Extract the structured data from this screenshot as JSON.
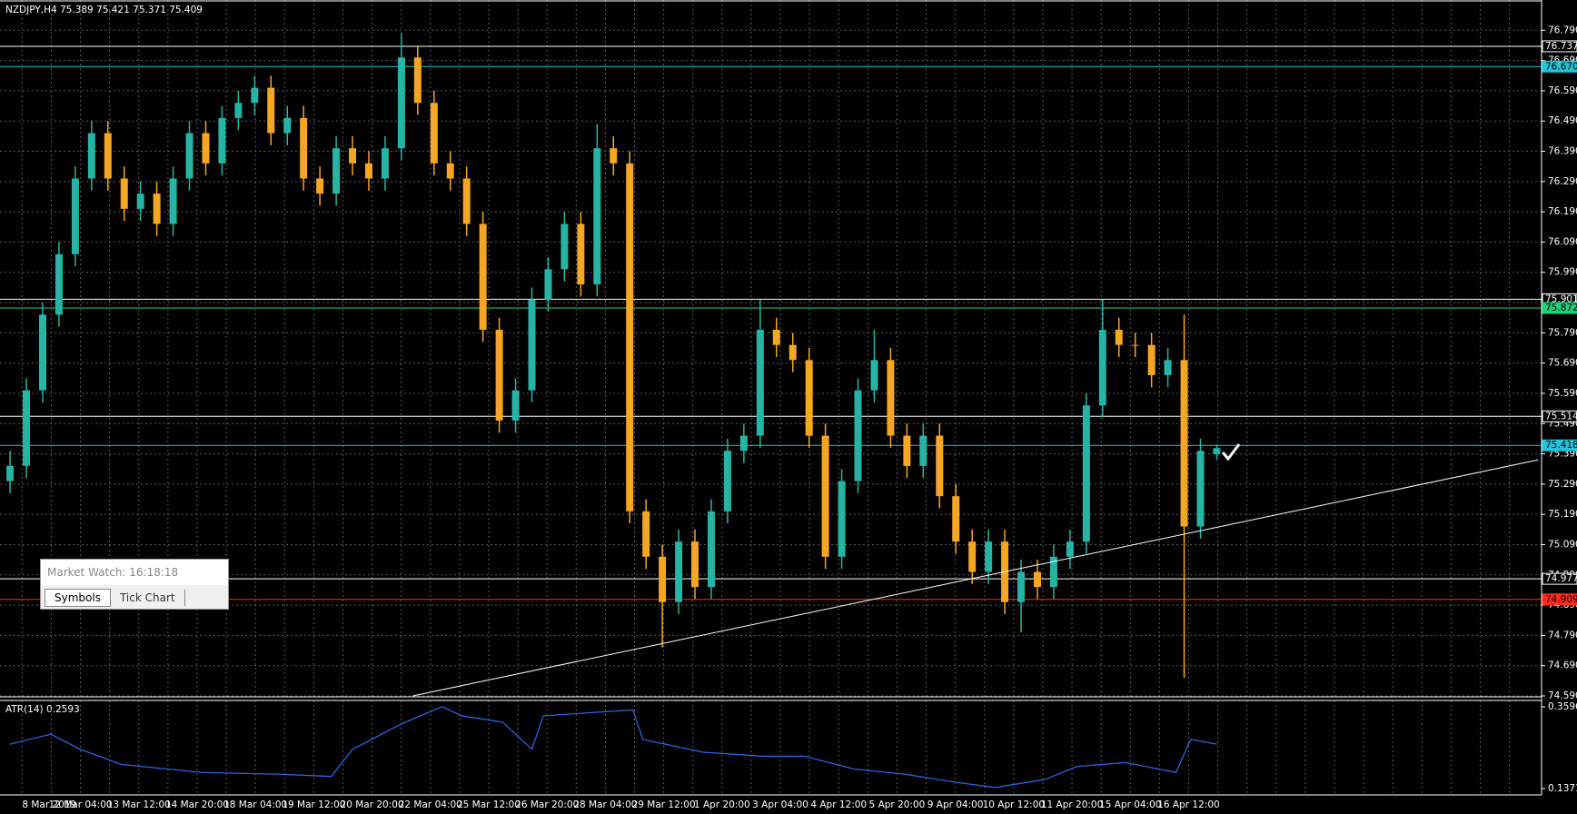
{
  "chart_data": {
    "type": "candlestick",
    "header": "NZDJPY,H4  75.389 75.421 75.371 75.409",
    "bull_color": "#26b5a5",
    "bear_color": "#f5a623",
    "ylim": [
      74.587,
      76.89
    ],
    "yticks": [
      {
        "value": 76.79,
        "label": "76.790"
      },
      {
        "value": 76.69,
        "label": "76.690"
      },
      {
        "value": 76.59,
        "label": "76.590"
      },
      {
        "value": 76.49,
        "label": "76.490"
      },
      {
        "value": 76.39,
        "label": "76.390"
      },
      {
        "value": 76.29,
        "label": "76.290"
      },
      {
        "value": 76.19,
        "label": "76.190"
      },
      {
        "value": 76.09,
        "label": "76.090"
      },
      {
        "value": 75.99,
        "label": "75.990"
      },
      {
        "value": 75.89,
        "label": "75.890"
      },
      {
        "value": 75.79,
        "label": "75.790"
      },
      {
        "value": 75.69,
        "label": "75.690"
      },
      {
        "value": 75.59,
        "label": "75.590"
      },
      {
        "value": 75.49,
        "label": "75.490"
      },
      {
        "value": 75.39,
        "label": "75.390"
      },
      {
        "value": 75.29,
        "label": "75.290"
      },
      {
        "value": 75.19,
        "label": "75.190"
      },
      {
        "value": 75.09,
        "label": "75.090"
      },
      {
        "value": 74.99,
        "label": "74.990"
      },
      {
        "value": 74.89,
        "label": "74.890"
      },
      {
        "value": 74.79,
        "label": "74.790"
      },
      {
        "value": 74.69,
        "label": "74.690"
      },
      {
        "value": 74.59,
        "label": "74.590"
      }
    ],
    "grid": true,
    "categories": [
      "8 Mar 2019",
      "12 Mar 04:00",
      "13 Mar 12:00",
      "14 Mar 20:00",
      "18 Mar 04:00",
      "19 Mar 12:00",
      "20 Mar 20:00",
      "22 Mar 04:00",
      "25 Mar 12:00",
      "26 Mar 20:00",
      "28 Mar 04:00",
      "29 Mar 12:00",
      "1 Apr 20:00",
      "3 Apr 04:00",
      "4 Apr 12:00",
      "5 Apr 20:00",
      "9 Apr 04:00",
      "10 Apr 12:00",
      "11 Apr 20:00",
      "15 Apr 04:00",
      "16 Apr 12:00"
    ],
    "candles": [
      [
        75.3,
        75.4,
        75.26,
        75.35
      ],
      [
        75.35,
        75.64,
        75.31,
        75.6
      ],
      [
        75.6,
        75.89,
        75.56,
        75.85
      ],
      [
        75.85,
        76.09,
        75.81,
        76.05
      ],
      [
        76.05,
        76.34,
        76.01,
        76.3
      ],
      [
        76.3,
        76.49,
        76.26,
        76.45
      ],
      [
        76.45,
        76.49,
        76.26,
        76.3
      ],
      [
        76.3,
        76.34,
        76.16,
        76.2
      ],
      [
        76.2,
        76.29,
        76.16,
        76.25
      ],
      [
        76.25,
        76.29,
        76.11,
        76.15
      ],
      [
        76.15,
        76.34,
        76.11,
        76.3
      ],
      [
        76.3,
        76.49,
        76.26,
        76.45
      ],
      [
        76.45,
        76.49,
        76.31,
        76.35
      ],
      [
        76.35,
        76.54,
        76.31,
        76.5
      ],
      [
        76.5,
        76.59,
        76.46,
        76.55
      ],
      [
        76.55,
        76.64,
        76.51,
        76.6
      ],
      [
        76.6,
        76.64,
        76.41,
        76.45
      ],
      [
        76.45,
        76.54,
        76.41,
        76.5
      ],
      [
        76.5,
        76.54,
        76.26,
        76.3
      ],
      [
        76.3,
        76.34,
        76.21,
        76.25
      ],
      [
        76.25,
        76.44,
        76.21,
        76.4
      ],
      [
        76.4,
        76.44,
        76.31,
        76.35
      ],
      [
        76.35,
        76.39,
        76.26,
        76.3
      ],
      [
        76.3,
        76.44,
        76.26,
        76.4
      ],
      [
        76.4,
        76.78,
        76.36,
        76.7
      ],
      [
        76.7,
        76.74,
        76.51,
        76.55
      ],
      [
        76.55,
        76.59,
        76.31,
        76.35
      ],
      [
        76.35,
        76.39,
        76.26,
        76.3
      ],
      [
        76.3,
        76.34,
        76.11,
        76.15
      ],
      [
        76.15,
        76.19,
        75.76,
        75.8
      ],
      [
        75.8,
        75.84,
        75.46,
        75.5
      ],
      [
        75.5,
        75.64,
        75.46,
        75.6
      ],
      [
        75.6,
        75.94,
        75.56,
        75.9
      ],
      [
        75.9,
        76.04,
        75.86,
        76.0
      ],
      [
        76.0,
        76.19,
        75.96,
        76.15
      ],
      [
        76.15,
        76.19,
        75.91,
        75.95
      ],
      [
        75.95,
        76.48,
        75.91,
        76.4
      ],
      [
        76.4,
        76.44,
        76.31,
        76.35
      ],
      [
        76.35,
        76.39,
        75.16,
        75.2
      ],
      [
        75.2,
        75.24,
        75.01,
        75.05
      ],
      [
        75.05,
        75.09,
        74.75,
        74.9
      ],
      [
        74.9,
        75.14,
        74.86,
        75.1
      ],
      [
        75.1,
        75.14,
        74.91,
        74.95
      ],
      [
        74.95,
        75.24,
        74.91,
        75.2
      ],
      [
        75.2,
        75.44,
        75.16,
        75.4
      ],
      [
        75.4,
        75.49,
        75.36,
        75.45
      ],
      [
        75.45,
        75.9,
        75.41,
        75.8
      ],
      [
        75.8,
        75.84,
        75.71,
        75.75
      ],
      [
        75.75,
        75.79,
        75.66,
        75.7
      ],
      [
        75.7,
        75.74,
        75.41,
        75.45
      ],
      [
        75.45,
        75.49,
        75.01,
        75.05
      ],
      [
        75.05,
        75.34,
        75.01,
        75.3
      ],
      [
        75.3,
        75.64,
        75.26,
        75.6
      ],
      [
        75.6,
        75.8,
        75.56,
        75.7
      ],
      [
        75.7,
        75.74,
        75.41,
        75.45
      ],
      [
        75.45,
        75.49,
        75.31,
        75.35
      ],
      [
        75.35,
        75.49,
        75.31,
        75.45
      ],
      [
        75.45,
        75.49,
        75.21,
        75.25
      ],
      [
        75.25,
        75.29,
        75.06,
        75.1
      ],
      [
        75.1,
        75.14,
        74.96,
        75.0
      ],
      [
        75.0,
        75.14,
        74.96,
        75.1
      ],
      [
        75.1,
        75.14,
        74.86,
        74.9
      ],
      [
        74.9,
        75.04,
        74.8,
        75.0
      ],
      [
        75.0,
        75.04,
        74.91,
        74.95
      ],
      [
        74.95,
        75.09,
        74.91,
        75.05
      ],
      [
        75.05,
        75.14,
        75.01,
        75.1
      ],
      [
        75.1,
        75.59,
        75.06,
        75.55
      ],
      [
        75.55,
        75.9,
        75.51,
        75.8
      ],
      [
        75.8,
        75.84,
        75.71,
        75.75
      ],
      [
        75.75,
        75.79,
        75.71,
        75.75
      ],
      [
        75.75,
        75.79,
        75.61,
        75.65
      ],
      [
        75.65,
        75.74,
        75.61,
        75.7
      ],
      [
        75.7,
        75.85,
        74.65,
        75.15
      ],
      [
        75.15,
        75.44,
        75.11,
        75.4
      ],
      [
        75.389,
        75.421,
        75.371,
        75.409
      ]
    ],
    "levels": [
      {
        "value": 76.737,
        "label": "76.737",
        "color": "#ffffff",
        "box": "#000000"
      },
      {
        "value": 76.67,
        "label": "76.670",
        "color": "#20c5d8",
        "box": "#20c5d8"
      },
      {
        "value": 75.901,
        "label": "75.901",
        "color": "#ffffff",
        "box": "#000000"
      },
      {
        "value": 75.872,
        "label": "75.872",
        "color": "#1fd07a",
        "box": "#1fd07a"
      },
      {
        "value": 75.514,
        "label": "75.514",
        "color": "#ffffff",
        "box": "#000000"
      },
      {
        "value": 75.418,
        "label": "75.418",
        "color": "#20c5d8",
        "box": "#20c5d8"
      },
      {
        "value": 74.977,
        "label": "74.977",
        "color": "#ffffff",
        "box": "#000000"
      },
      {
        "value": 74.909,
        "label": "74.909",
        "color": "#ff2a1a",
        "box": "#ff2a1a"
      }
    ],
    "trendline": {
      "x": [
        24.7,
        93.7
      ],
      "values": [
        74.59,
        75.37
      ],
      "color": "#ffffff"
    },
    "atr": {
      "label": "ATR(14) 0.2593",
      "color": "#2a63e0",
      "ylim": [
        0.1371,
        0.3596
      ],
      "yticks": [
        0.3596,
        0.1371
      ],
      "x": [
        0,
        2.5,
        4.3,
        6.8,
        11.7,
        16.6,
        19.7,
        21,
        24,
        26.5,
        27.7,
        30.2,
        32,
        32.7,
        36.4,
        38.2,
        38.8,
        42.5,
        46.2,
        48.7,
        51.8,
        54.9,
        58,
        60.4,
        63.5,
        65.4,
        68.4,
        71.5,
        72.4,
        74
      ],
      "values": [
        0.258,
        0.285,
        0.244,
        0.203,
        0.181,
        0.176,
        0.17,
        0.244,
        0.313,
        0.36,
        0.335,
        0.318,
        0.244,
        0.335,
        0.346,
        0.351,
        0.271,
        0.236,
        0.225,
        0.225,
        0.19,
        0.176,
        0.154,
        0.14,
        0.162,
        0.197,
        0.208,
        0.181,
        0.271,
        0.258
      ]
    },
    "market_watch": {
      "title": "Market Watch: 16:18:18",
      "tabs": [
        "Symbols",
        "Tick Chart"
      ]
    }
  }
}
